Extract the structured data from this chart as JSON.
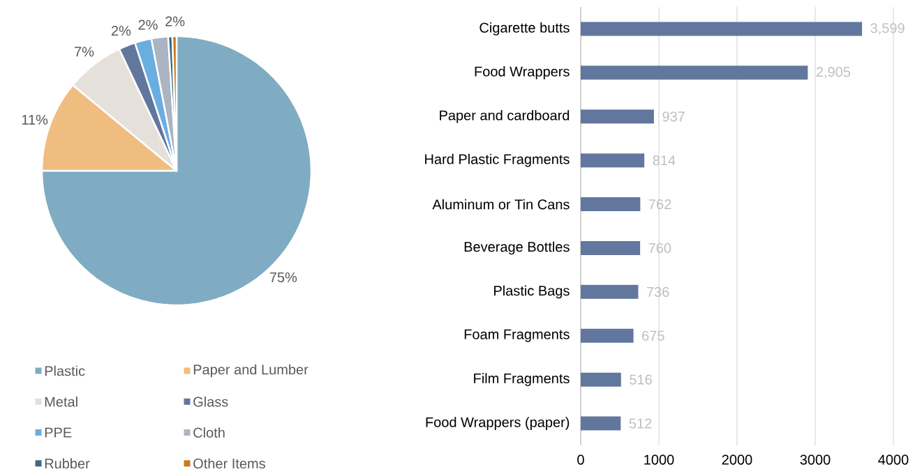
{
  "chart_data": [
    {
      "type": "pie",
      "categories": [
        "Plastic",
        "Paper and Lumber",
        "Metal",
        "Glass",
        "PPE",
        "Cloth",
        "Rubber",
        "Other Items"
      ],
      "values": [
        75,
        11,
        7,
        2,
        2,
        2,
        0.5,
        0.5
      ],
      "colors": [
        "#7facc2",
        "#f0bd80",
        "#e6e0da",
        "#62779e",
        "#6aaee0",
        "#aab4c3",
        "#3d6b82",
        "#c77a1f"
      ],
      "value_labels": [
        "75%",
        "11%",
        "7%",
        "2%",
        "2%",
        "2%",
        null,
        null
      ],
      "legend": "bottom"
    },
    {
      "type": "bar",
      "orientation": "horizontal",
      "categories": [
        "Cigarette butts",
        "Food Wrappers",
        "Paper and cardboard",
        "Hard Plastic Fragments",
        "Aluminum or Tin Cans",
        "Beverage Bottles",
        "Plastic Bags",
        "Foam Fragments",
        "Film Fragments",
        "Food Wrappers (paper)"
      ],
      "values": [
        3599,
        2905,
        937,
        814,
        762,
        760,
        736,
        675,
        516,
        512
      ],
      "color": "#62779e",
      "value_labels": [
        "3,599",
        "2,905",
        "937",
        "814",
        "762",
        "760",
        "736",
        "675",
        "516",
        "512"
      ],
      "xlim": [
        0,
        4000
      ],
      "xticks": [
        0,
        1000,
        2000,
        3000,
        4000
      ],
      "grid": "x"
    }
  ]
}
